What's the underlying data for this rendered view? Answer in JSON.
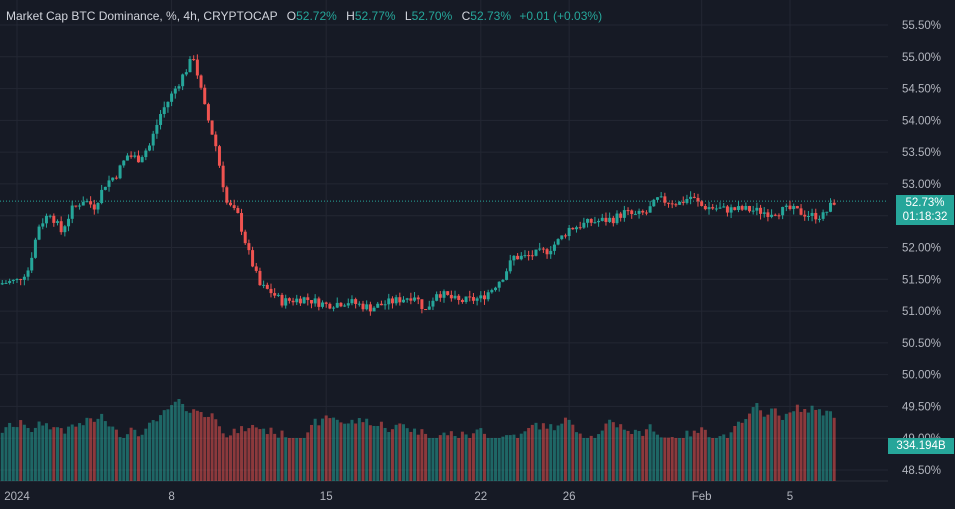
{
  "legend": {
    "symbol": "Market Cap BTC Dominance, %, 4h, CRYPTOCAP",
    "open_label": "O",
    "open": "52.72%",
    "high_label": "H",
    "high": "52.77%",
    "low_label": "L",
    "low": "52.70%",
    "close_label": "C",
    "close": "52.73%",
    "change": "+0.01 (+0.03%)"
  },
  "price_tag": {
    "value": "52.73%",
    "countdown": "01:18:32"
  },
  "volume_tag": "334.194B",
  "colors": {
    "up": "#26a69a",
    "down": "#ef5350",
    "background": "#161a25",
    "grid": "#232733",
    "text": "#b2b5be"
  },
  "chart_data": {
    "type": "candlestick",
    "y_ticks": [
      "48.50%",
      "49.00%",
      "49.50%",
      "50.00%",
      "50.50%",
      "51.00%",
      "51.50%",
      "52.00%",
      "52.50%",
      "53.00%",
      "53.50%",
      "54.00%",
      "54.50%",
      "55.00%",
      "55.50%"
    ],
    "y_tick_values": [
      48.5,
      49.0,
      49.5,
      50.0,
      50.5,
      51.0,
      51.5,
      52.0,
      52.5,
      53.0,
      53.5,
      54.0,
      54.5,
      55.0,
      55.5
    ],
    "x_ticks": [
      {
        "label": "2024",
        "date": "2024-01-01"
      },
      {
        "label": "8",
        "date": "2024-01-08"
      },
      {
        "label": "15",
        "date": "2024-01-15"
      },
      {
        "label": "22",
        "date": "2024-01-22"
      },
      {
        "label": "26",
        "date": "2024-01-26"
      },
      {
        "label": "Feb",
        "date": "2024-02-01"
      },
      {
        "label": "5",
        "date": "2024-02-05"
      }
    ],
    "last_price": 52.73,
    "close_path": [
      [
        "2023-12-31",
        51.42
      ],
      [
        "2024-01-01",
        51.48
      ],
      [
        "2024-01-01 12:00",
        51.65
      ],
      [
        "2024-01-02",
        52.35
      ],
      [
        "2024-01-02 12:00",
        52.55
      ],
      [
        "2024-01-03",
        52.25
      ],
      [
        "2024-01-03 12:00",
        52.6
      ],
      [
        "2024-01-04",
        52.75
      ],
      [
        "2024-01-04 12:00",
        52.65
      ],
      [
        "2024-01-05",
        53.0
      ],
      [
        "2024-01-05 12:00",
        53.15
      ],
      [
        "2024-01-06",
        53.45
      ],
      [
        "2024-01-06 12:00",
        53.4
      ],
      [
        "2024-01-07",
        53.6
      ],
      [
        "2024-01-07 12:00",
        54.1
      ],
      [
        "2024-01-08",
        54.4
      ],
      [
        "2024-01-08 12:00",
        54.7
      ],
      [
        "2024-01-09",
        55.0
      ],
      [
        "2024-01-09 12:00",
        54.2
      ],
      [
        "2024-01-10",
        53.6
      ],
      [
        "2024-01-10 12:00",
        52.7
      ],
      [
        "2024-01-11",
        52.5
      ],
      [
        "2024-01-11 12:00",
        51.9
      ],
      [
        "2024-01-12",
        51.4
      ],
      [
        "2024-01-12 12:00",
        51.3
      ],
      [
        "2024-01-13",
        51.15
      ],
      [
        "2024-01-14",
        51.2
      ],
      [
        "2024-01-15",
        51.1
      ],
      [
        "2024-01-16",
        51.15
      ],
      [
        "2024-01-17",
        51.05
      ],
      [
        "2024-01-18",
        51.15
      ],
      [
        "2024-01-19",
        51.25
      ],
      [
        "2024-01-19 12:00",
        51.0
      ],
      [
        "2024-01-20",
        51.3
      ],
      [
        "2024-01-21",
        51.15
      ],
      [
        "2024-01-22",
        51.2
      ],
      [
        "2024-01-22 12:00",
        51.35
      ],
      [
        "2024-01-23",
        51.55
      ],
      [
        "2024-01-23 12:00",
        51.85
      ],
      [
        "2024-01-24",
        51.85
      ],
      [
        "2024-01-25",
        51.95
      ],
      [
        "2024-01-25 12:00",
        52.1
      ],
      [
        "2024-01-26",
        52.3
      ],
      [
        "2024-01-26 12:00",
        52.35
      ],
      [
        "2024-01-27",
        52.4
      ],
      [
        "2024-01-28",
        52.45
      ],
      [
        "2024-01-28 12:00",
        52.55
      ],
      [
        "2024-01-29",
        52.5
      ],
      [
        "2024-01-29 12:00",
        52.55
      ],
      [
        "2024-01-30",
        52.75
      ],
      [
        "2024-01-31",
        52.7
      ],
      [
        "2024-01-31 12:00",
        52.8
      ],
      [
        "2024-02-01",
        52.65
      ],
      [
        "2024-02-02",
        52.6
      ],
      [
        "2024-02-03",
        52.6
      ],
      [
        "2024-02-04",
        52.55
      ],
      [
        "2024-02-05",
        52.6
      ],
      [
        "2024-02-05 12:00",
        52.55
      ],
      [
        "2024-02-06",
        52.5
      ],
      [
        "2024-02-06 12:00",
        52.5
      ],
      [
        "2024-02-07",
        52.72
      ]
    ]
  }
}
